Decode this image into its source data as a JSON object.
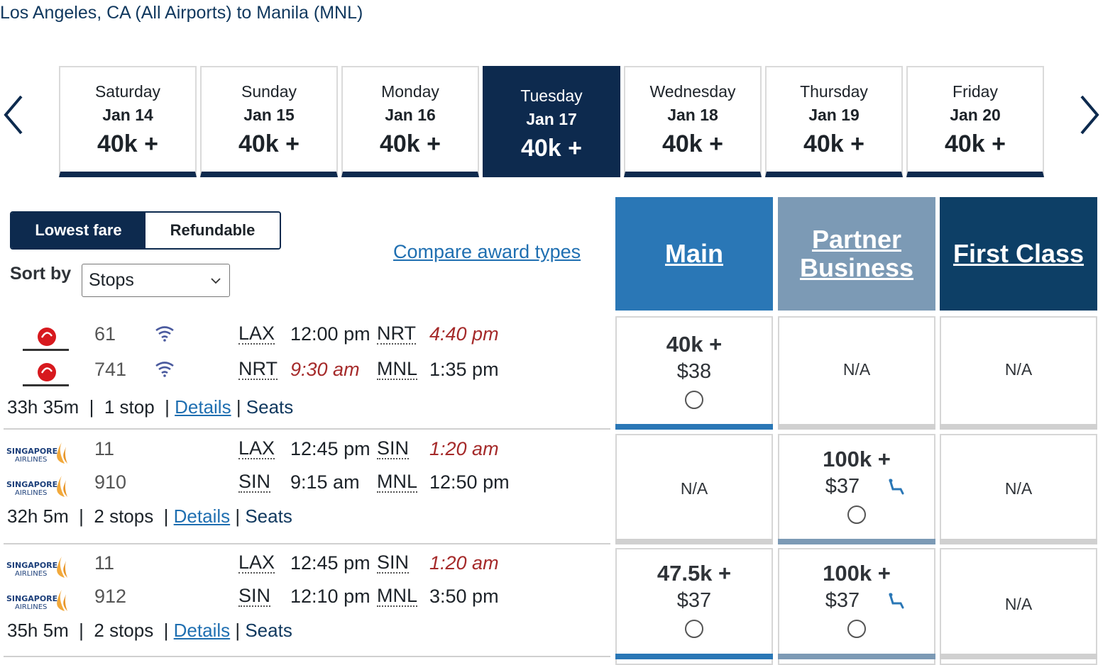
{
  "route": {
    "title": "Los Angeles, CA (All Airports) to Manila (MNL)"
  },
  "date_tabs": [
    {
      "day": "Saturday",
      "date": "Jan 14",
      "price": "40k +"
    },
    {
      "day": "Sunday",
      "date": "Jan 15",
      "price": "40k +"
    },
    {
      "day": "Monday",
      "date": "Jan 16",
      "price": "40k +"
    },
    {
      "day": "Tuesday",
      "date": "Jan 17",
      "price": "40k +",
      "selected": true
    },
    {
      "day": "Wednesday",
      "date": "Jan 18",
      "price": "40k +"
    },
    {
      "day": "Thursday",
      "date": "Jan 19",
      "price": "40k +"
    },
    {
      "day": "Friday",
      "date": "Jan 20",
      "price": "40k +"
    }
  ],
  "fare_toggle": {
    "lowest": "Lowest fare",
    "refundable": "Refundable",
    "active": "lowest"
  },
  "sort": {
    "label": "Sort by",
    "value": "Stops"
  },
  "compare_link": "Compare award types",
  "cabins": {
    "main": "Main",
    "partner": "Partner Business",
    "first": "First Class"
  },
  "colors": {
    "navy": "#0d2a4e",
    "main_blue": "#2a77b6",
    "partner_gray_blue": "#7c9ab5",
    "first_dark": "#0d3f66",
    "link": "#1f6fb1",
    "arrival_red": "#a52a2a"
  },
  "flights": [
    {
      "segments": [
        {
          "airline_icon": "japan-airlines-logo",
          "flight": "61",
          "wifi": true,
          "from": "LAX",
          "dep": "12:00 pm",
          "to": "NRT",
          "arr": "4:40 pm"
        },
        {
          "airline_icon": "japan-airlines-logo",
          "flight": "741",
          "wifi": true,
          "from": "NRT",
          "dep": "9:30 am",
          "to": "MNL",
          "arr": "1:35 pm"
        }
      ],
      "duration": "33h 35m",
      "stops": "1 stop",
      "details": "Details",
      "seats": "Seats",
      "fares": {
        "main": {
          "miles": "40k +",
          "tax": "$38"
        },
        "partner": {
          "na": "N/A"
        },
        "first": {
          "na": "N/A"
        }
      }
    },
    {
      "segments": [
        {
          "airline_icon": "singapore-airlines-logo",
          "flight": "11",
          "from": "LAX",
          "dep": "12:45 pm",
          "to": "SIN",
          "arr": "1:20 am"
        },
        {
          "airline_icon": "singapore-airlines-logo",
          "flight": "910",
          "from": "SIN",
          "dep": "9:15 am",
          "to": "MNL",
          "arr": "12:50 pm"
        }
      ],
      "duration": "32h 5m",
      "stops": "2 stops",
      "details": "Details",
      "seats": "Seats",
      "fares": {
        "main": {
          "na": "N/A"
        },
        "partner": {
          "miles": "100k +",
          "tax": "$37"
        },
        "first": {
          "na": "N/A"
        }
      }
    },
    {
      "segments": [
        {
          "airline_icon": "singapore-airlines-logo",
          "flight": "11",
          "from": "LAX",
          "dep": "12:45 pm",
          "to": "SIN",
          "arr": "1:20 am"
        },
        {
          "airline_icon": "singapore-airlines-logo",
          "flight": "912",
          "from": "SIN",
          "dep": "12:10 pm",
          "to": "MNL",
          "arr": "3:50 pm"
        }
      ],
      "duration": "35h 5m",
      "stops": "2 stops",
      "details": "Details",
      "seats": "Seats",
      "fares": {
        "main": {
          "miles": "47.5k +",
          "tax": "$37"
        },
        "partner": {
          "miles": "100k +",
          "tax": "$37"
        },
        "first": {
          "na": "N/A"
        }
      }
    }
  ]
}
